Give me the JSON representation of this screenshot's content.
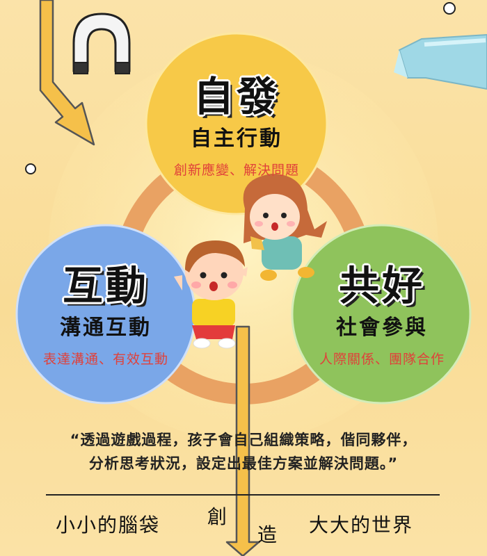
{
  "circles": [
    {
      "id": "autonomy",
      "title": "自發",
      "subtitle": "自主行動",
      "desc": "創新應變、解決問題",
      "color": "#f7c948",
      "desc_color": "#e0413a"
    },
    {
      "id": "interaction",
      "title": "互動",
      "subtitle": "溝通互動",
      "desc": "表達溝通、有效互動",
      "color": "#7aa7e8",
      "desc_color": "#e0413a"
    },
    {
      "id": "common-good",
      "title": "共好",
      "subtitle": "社會參與",
      "desc": "人際關係、團隊合作",
      "color": "#8fc35c",
      "desc_color": "#e0413a"
    }
  ],
  "quote": {
    "line1": "“透過遊戲過程，孩子會自己組織策略，偕同夥伴，",
    "line2": "分析思考狀況，設定出最佳方案並解決問題。”"
  },
  "slogan": {
    "left": "小小的腦袋",
    "mid1": "創",
    "mid2": "造",
    "right": "大大的世界"
  },
  "colors": {
    "background": "#fbe3a9",
    "ring_orange": "#e9a263",
    "arrow_fill": "#f5c04a",
    "arrow_stroke": "#555555"
  }
}
